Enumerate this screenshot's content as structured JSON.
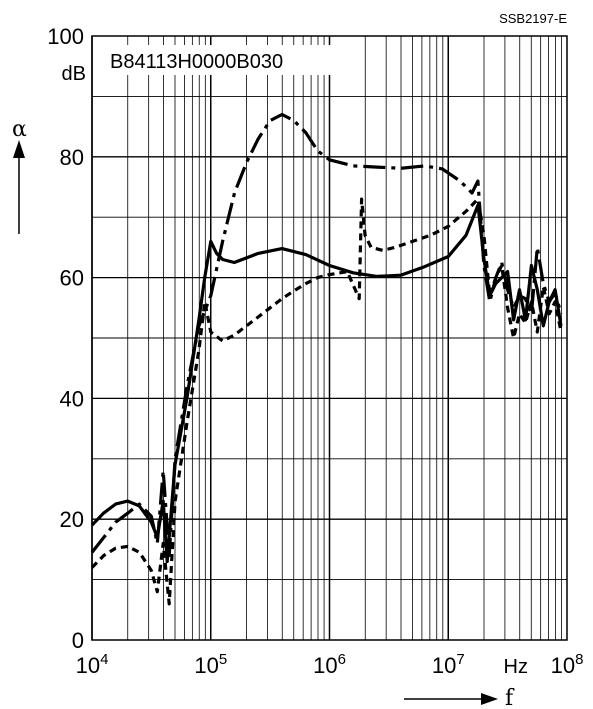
{
  "chart_data": {
    "type": "line",
    "reference": "SSB2197-E",
    "part_number": "B84113H0000B030",
    "xlabel": "f",
    "ylabel": "α",
    "x_unit": "Hz",
    "y_unit": "dB",
    "x_scale": "log",
    "xlim": [
      10000,
      100000000
    ],
    "ylim": [
      0,
      100
    ],
    "grid": true,
    "y_ticks": [
      "0",
      "20",
      "40",
      "60",
      "80",
      "100"
    ],
    "x_ticks": [
      {
        "base": "10",
        "exp": "4"
      },
      {
        "base": "10",
        "exp": "5"
      },
      {
        "base": "10",
        "exp": "6"
      },
      {
        "base": "10",
        "exp": "7"
      },
      {
        "base": "10",
        "exp": "8"
      }
    ],
    "series": [
      {
        "style": "solid",
        "points": [
          [
            10000,
            19
          ],
          [
            12500,
            21
          ],
          [
            15800,
            22.5
          ],
          [
            20000,
            23
          ],
          [
            25000,
            22.2
          ],
          [
            31600,
            19.5
          ],
          [
            35500,
            17
          ],
          [
            39800,
            23
          ],
          [
            43000,
            13
          ],
          [
            50000,
            29
          ],
          [
            63000,
            40
          ],
          [
            79400,
            53
          ],
          [
            89000,
            60
          ],
          [
            100000,
            66
          ],
          [
            112000,
            64
          ],
          [
            126000,
            63
          ],
          [
            158000,
            62.5
          ],
          [
            251000,
            64
          ],
          [
            398000,
            64.8
          ],
          [
            631000,
            63.8
          ],
          [
            1000000,
            62
          ],
          [
            1580000,
            60.8
          ],
          [
            2510000,
            60.2
          ],
          [
            3980000,
            60.4
          ],
          [
            6310000,
            61.8
          ],
          [
            10000000,
            63.5
          ],
          [
            14100000,
            67
          ],
          [
            17800000,
            72
          ],
          [
            20000000,
            63
          ],
          [
            22400000,
            57
          ],
          [
            25100000,
            59
          ],
          [
            31600000,
            61
          ],
          [
            35500000,
            53
          ],
          [
            39800000,
            58
          ],
          [
            44700000,
            53
          ],
          [
            50100000,
            62
          ],
          [
            56200000,
            58
          ],
          [
            63100000,
            52
          ],
          [
            70800000,
            56
          ],
          [
            79400000,
            58
          ],
          [
            89100000,
            52
          ]
        ]
      },
      {
        "style": "long-dash",
        "points": [
          [
            10000,
            14.5
          ],
          [
            12600,
            17
          ],
          [
            15800,
            19.5
          ],
          [
            20000,
            21
          ],
          [
            25000,
            22.5
          ],
          [
            31600,
            20.5
          ],
          [
            35500,
            16
          ],
          [
            39800,
            28
          ],
          [
            44700,
            14
          ],
          [
            50100,
            30
          ],
          [
            63100,
            42
          ],
          [
            79400,
            52
          ],
          [
            100000,
            57
          ],
          [
            125900,
            66
          ],
          [
            158500,
            74
          ],
          [
            199500,
            79
          ],
          [
            251200,
            83
          ],
          [
            316200,
            86
          ],
          [
            398100,
            87
          ],
          [
            501200,
            86
          ],
          [
            631000,
            84
          ],
          [
            794300,
            81
          ],
          [
            1000000,
            79.5
          ],
          [
            1585000,
            78.5
          ],
          [
            2512000,
            78.3
          ],
          [
            3981000,
            78.1
          ],
          [
            6310000,
            78.5
          ],
          [
            8913000,
            78
          ],
          [
            12590000,
            76
          ],
          [
            15850000,
            74
          ],
          [
            17780000,
            76
          ],
          [
            19950000,
            62
          ],
          [
            22390000,
            56
          ],
          [
            25120000,
            60
          ],
          [
            28180000,
            62.5
          ],
          [
            31620000,
            58
          ],
          [
            35480000,
            55
          ],
          [
            39810000,
            57
          ],
          [
            44670000,
            56.5
          ],
          [
            50120000,
            54
          ],
          [
            56230000,
            65
          ],
          [
            63100000,
            59
          ],
          [
            70790000,
            56
          ],
          [
            79430000,
            57.5
          ],
          [
            89130000,
            54
          ]
        ]
      },
      {
        "style": "short-dash",
        "points": [
          [
            10000,
            12
          ],
          [
            12600,
            14
          ],
          [
            15800,
            15.2
          ],
          [
            20000,
            15.5
          ],
          [
            25100,
            14.5
          ],
          [
            31600,
            11.5
          ],
          [
            35500,
            8
          ],
          [
            39800,
            16
          ],
          [
            44700,
            6
          ],
          [
            50100,
            23
          ],
          [
            63100,
            36
          ],
          [
            79400,
            48
          ],
          [
            89100,
            56
          ],
          [
            100000,
            51
          ],
          [
            125900,
            49.5
          ],
          [
            158500,
            50.5
          ],
          [
            199500,
            52
          ],
          [
            251200,
            53.5
          ],
          [
            316200,
            55
          ],
          [
            398100,
            56.5
          ],
          [
            501200,
            57.8
          ],
          [
            631000,
            59
          ],
          [
            794300,
            60
          ],
          [
            1000000,
            60.5
          ],
          [
            1413000,
            61
          ],
          [
            1778000,
            56.5
          ],
          [
            1862000,
            73
          ],
          [
            1995000,
            67
          ],
          [
            2239000,
            65
          ],
          [
            2818000,
            64.5
          ],
          [
            3548000,
            65
          ],
          [
            5012000,
            66
          ],
          [
            7079000,
            67
          ],
          [
            10000000,
            68.5
          ],
          [
            14130000,
            71
          ],
          [
            17780000,
            73
          ],
          [
            19950000,
            67
          ],
          [
            22390000,
            57
          ],
          [
            25120000,
            60
          ],
          [
            28180000,
            62
          ],
          [
            31620000,
            55
          ],
          [
            35480000,
            50
          ],
          [
            39810000,
            54
          ],
          [
            44670000,
            52.5
          ],
          [
            50120000,
            56
          ],
          [
            56230000,
            51
          ],
          [
            63100000,
            58.5
          ],
          [
            70790000,
            54
          ],
          [
            79430000,
            56
          ],
          [
            89130000,
            51
          ]
        ]
      }
    ]
  }
}
